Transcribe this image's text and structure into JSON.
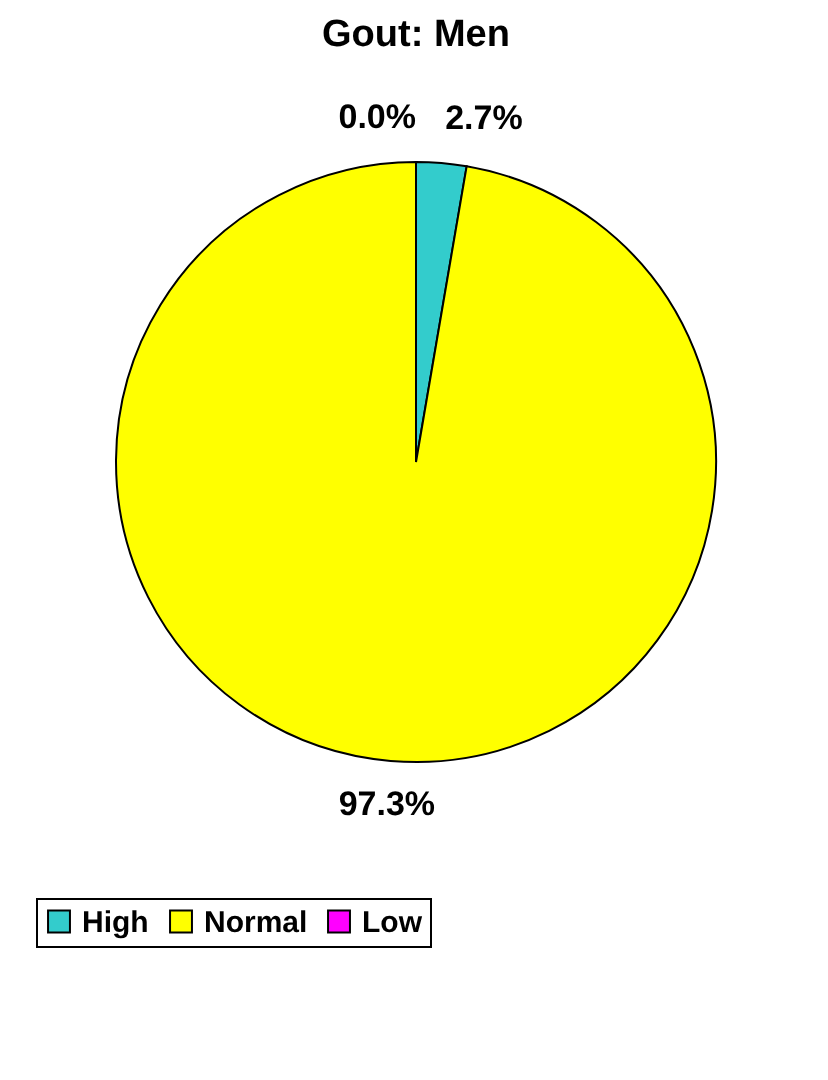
{
  "chart_data": {
    "type": "pie",
    "title": "Gout: Men",
    "categories": [
      "High",
      "Normal",
      "Low"
    ],
    "values": [
      2.7,
      97.3,
      0.0
    ],
    "colors": [
      "#33cccc",
      "#ffff00",
      "#ff00ff"
    ],
    "value_labels": [
      "2.7%",
      "97.3%",
      "0.0%"
    ],
    "legend": "bottom"
  }
}
